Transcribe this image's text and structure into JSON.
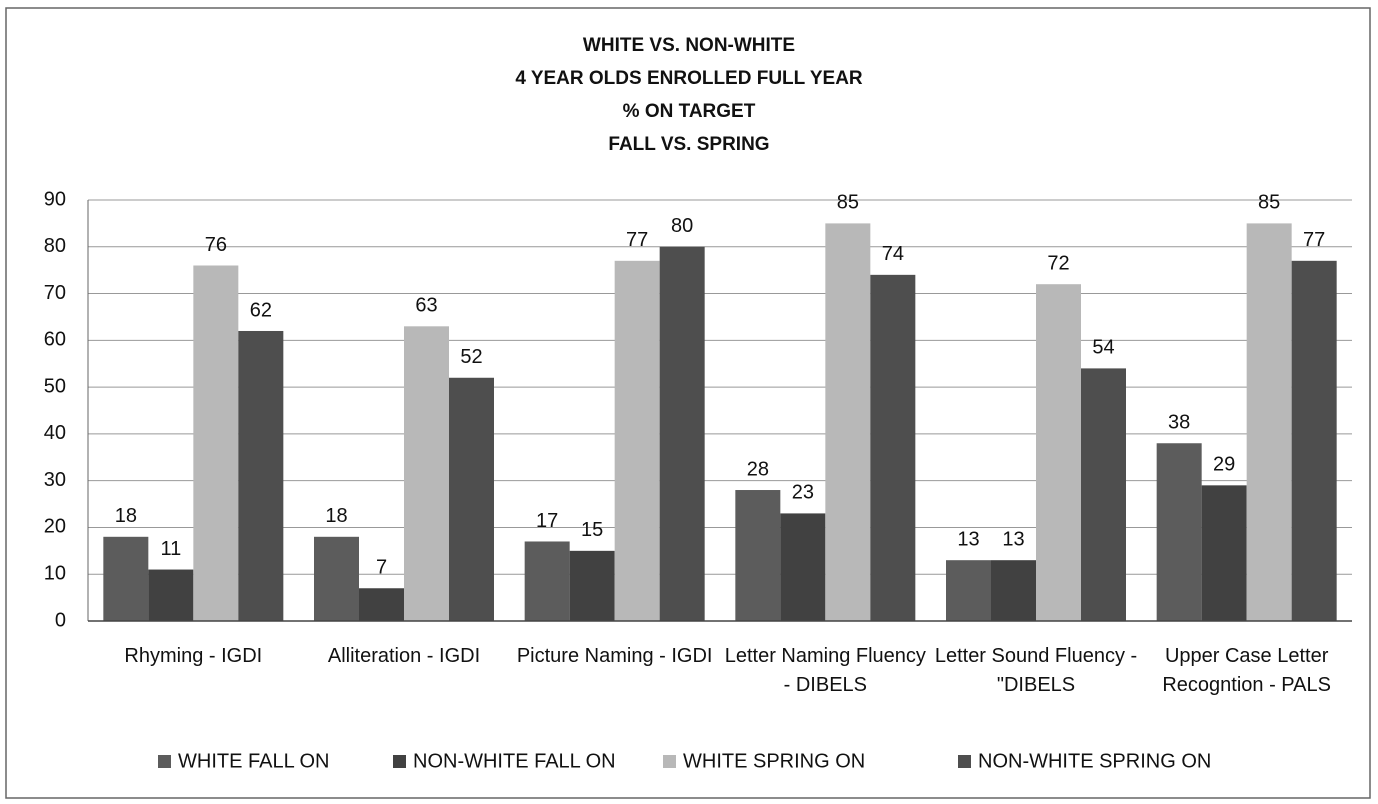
{
  "chart_data": {
    "type": "bar",
    "title": [
      "WHITE VS. NON-WHITE",
      "4 YEAR OLDS ENROLLED FULL YEAR",
      "% ON TARGET",
      "FALL VS. SPRING"
    ],
    "categories": [
      "Rhyming - IGDI",
      "Alliteration - IGDI",
      "Picture Naming - IGDI",
      "Letter Naming Fluency - DIBELS",
      "Letter Sound Fluency - \"DIBELS",
      "Upper Case Letter Recogntion - PALS"
    ],
    "series": [
      {
        "name": "WHITE FALL ON",
        "color": "#5c5c5c",
        "values": [
          18,
          18,
          17,
          28,
          13,
          38
        ]
      },
      {
        "name": "NON-WHITE FALL ON",
        "color": "#414141",
        "values": [
          11,
          7,
          15,
          23,
          13,
          29
        ]
      },
      {
        "name": "WHITE SPRING ON",
        "color": "#b8b8b8",
        "values": [
          76,
          63,
          77,
          85,
          72,
          85
        ]
      },
      {
        "name": "NON-WHITE SPRING ON",
        "color": "#4e4e4e",
        "values": [
          62,
          52,
          80,
          74,
          54,
          77
        ]
      }
    ],
    "ylim": [
      0,
      90
    ],
    "yticks": [
      0,
      10,
      20,
      30,
      40,
      50,
      60,
      70,
      80,
      90
    ],
    "grid": true,
    "legend": "bottom"
  }
}
